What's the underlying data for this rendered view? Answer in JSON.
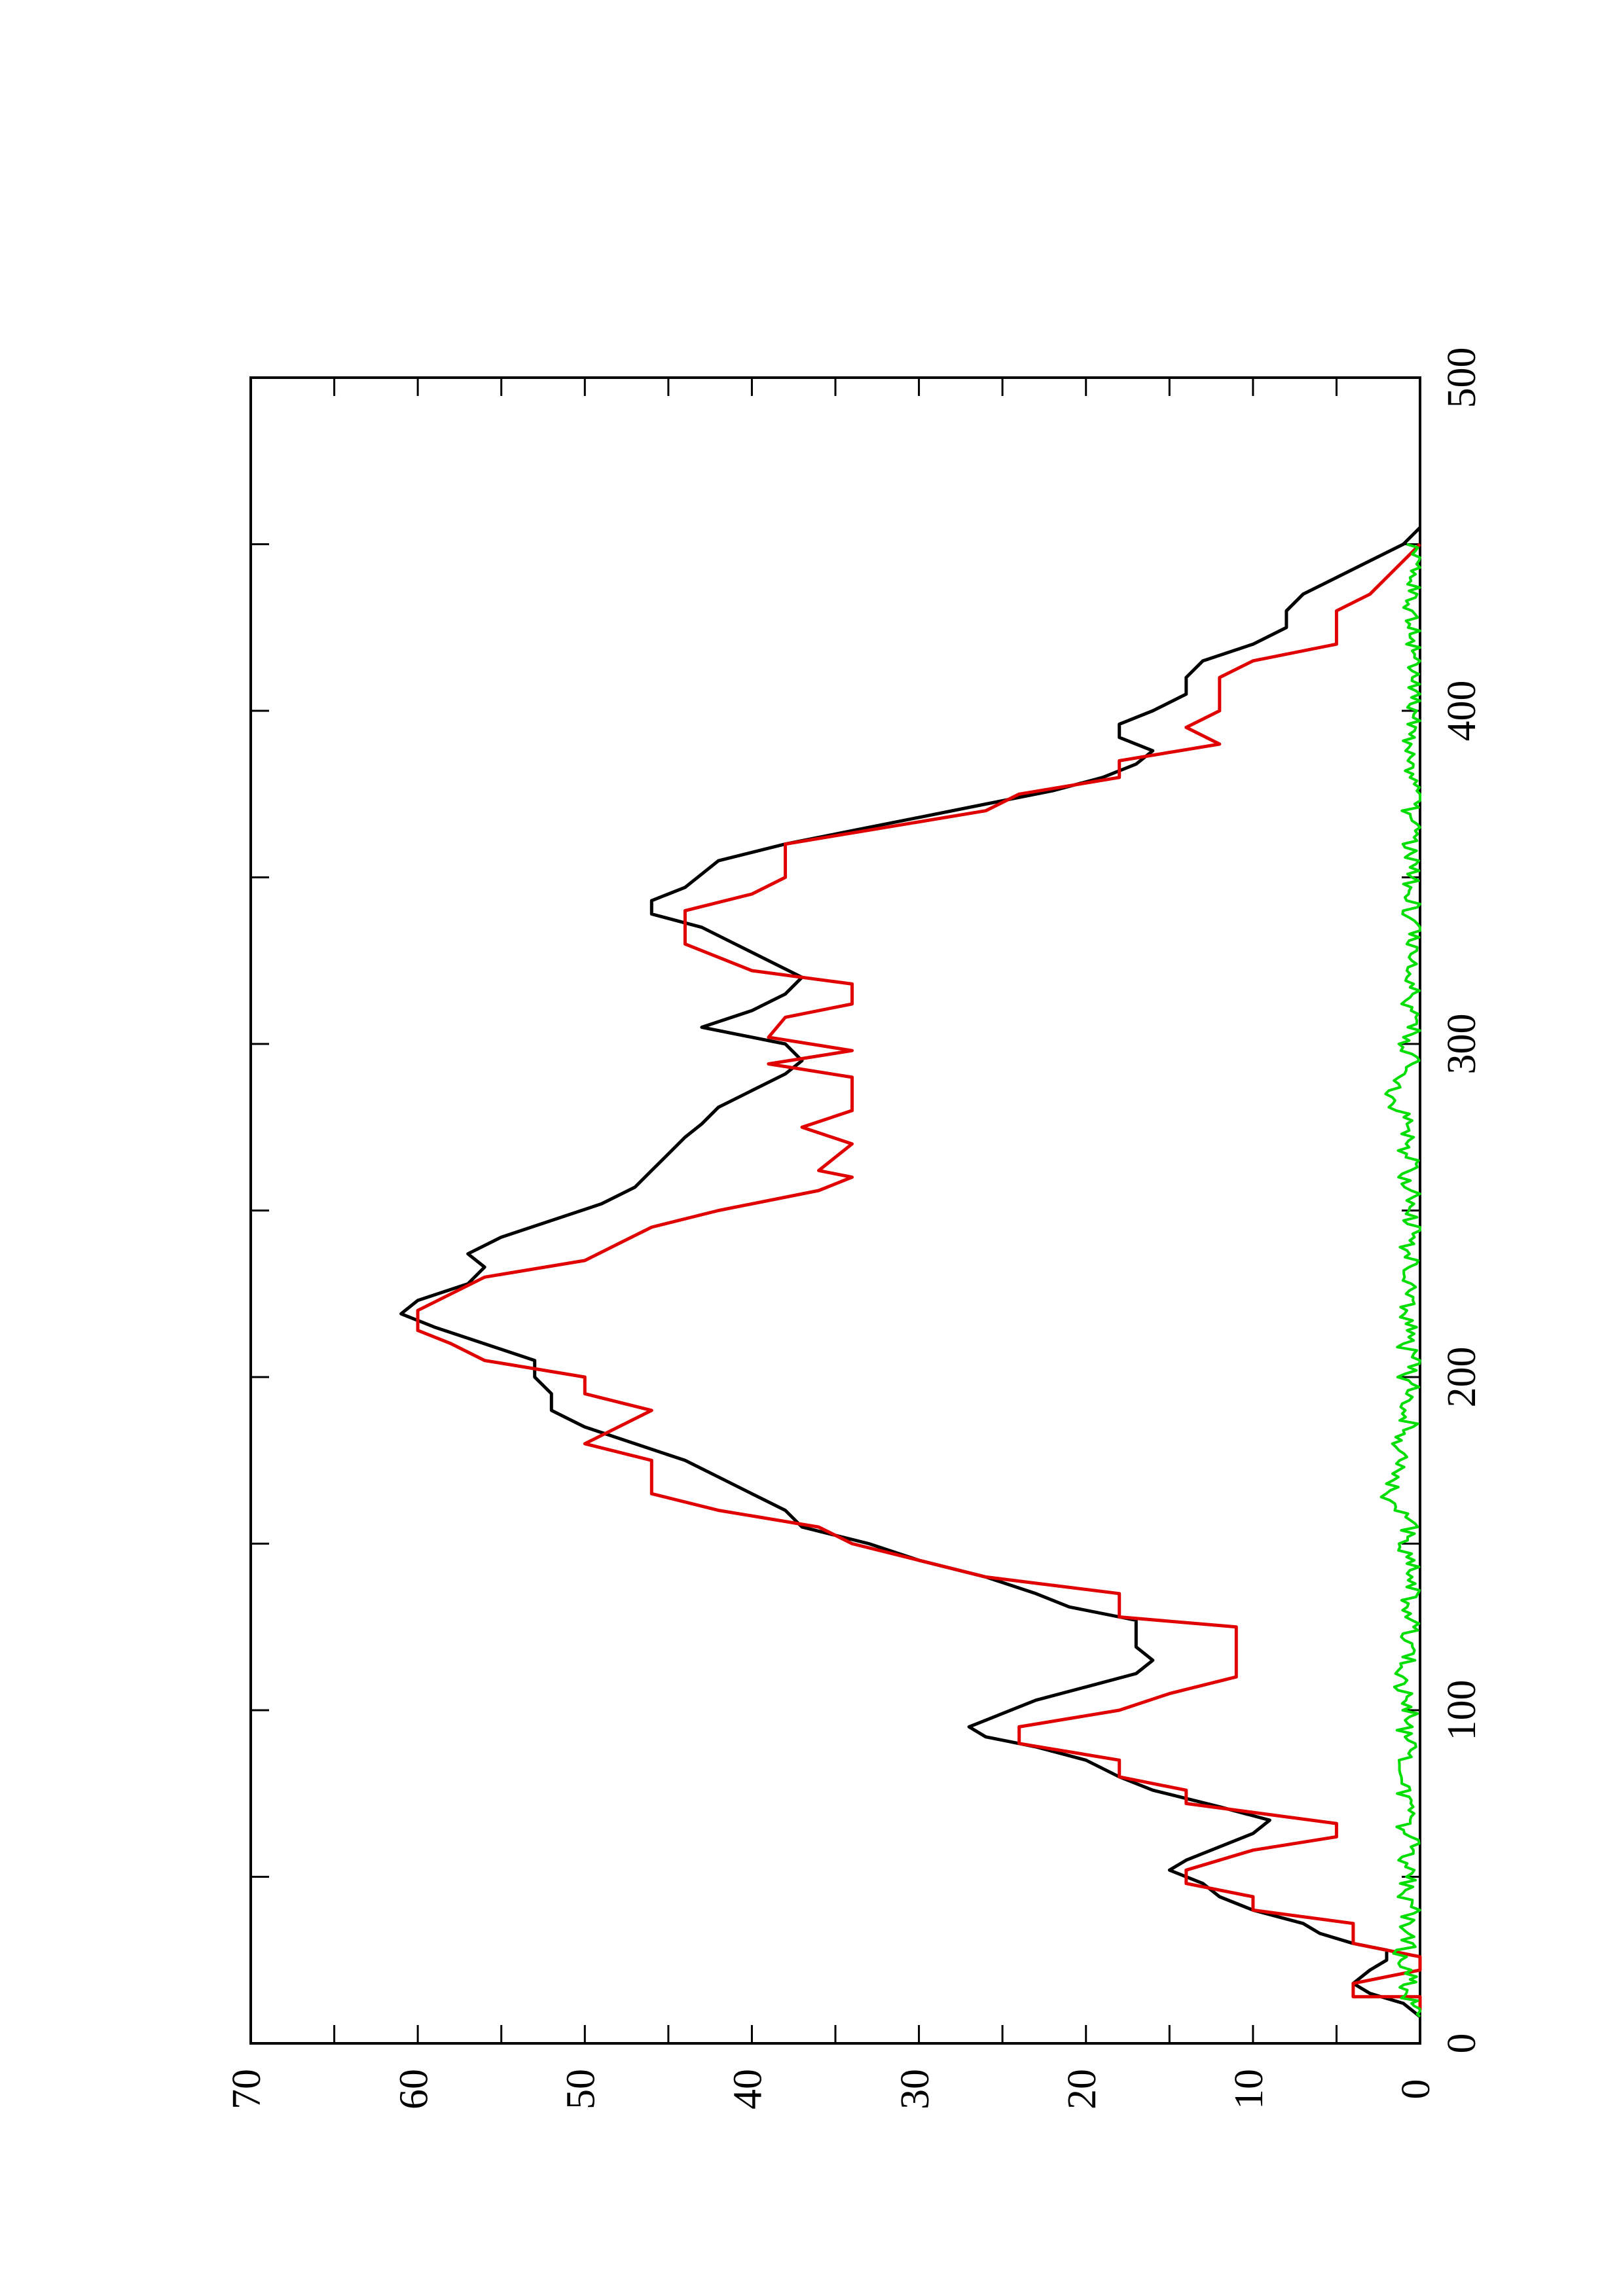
{
  "chart_data": {
    "type": "line",
    "orientation": "rotated-90-ccw",
    "title": "",
    "xlabel": "",
    "ylabel": "",
    "xlim": [
      0,
      500
    ],
    "ylim": [
      0,
      70
    ],
    "x_ticks": [
      "0",
      "100",
      "200",
      "300",
      "400",
      "500"
    ],
    "y_ticks": [
      "0",
      "10",
      "20",
      "30",
      "40",
      "50",
      "60",
      "70"
    ],
    "grid": false,
    "legend": "none",
    "series": [
      {
        "color": "#000000",
        "style": "line",
        "points": [
          [
            8,
            0
          ],
          [
            12,
            1
          ],
          [
            15,
            3
          ],
          [
            18,
            4
          ],
          [
            22,
            3
          ],
          [
            25,
            2
          ],
          [
            28,
            2
          ],
          [
            30,
            4
          ],
          [
            33,
            6
          ],
          [
            36,
            7
          ],
          [
            40,
            10
          ],
          [
            44,
            12
          ],
          [
            48,
            13
          ],
          [
            52,
            15
          ],
          [
            55,
            14
          ],
          [
            59,
            12
          ],
          [
            63,
            10
          ],
          [
            67,
            9
          ],
          [
            71,
            12
          ],
          [
            76,
            16
          ],
          [
            80,
            18
          ],
          [
            85,
            20
          ],
          [
            89,
            23
          ],
          [
            92,
            26
          ],
          [
            95,
            27
          ],
          [
            99,
            25
          ],
          [
            103,
            23
          ],
          [
            107,
            20
          ],
          [
            111,
            17
          ],
          [
            115,
            16
          ],
          [
            119,
            17
          ],
          [
            123,
            17
          ],
          [
            127,
            17
          ],
          [
            131,
            21
          ],
          [
            135,
            23
          ],
          [
            140,
            26
          ],
          [
            145,
            30
          ],
          [
            150,
            33
          ],
          [
            155,
            37
          ],
          [
            160,
            38
          ],
          [
            165,
            40
          ],
          [
            170,
            42
          ],
          [
            175,
            44
          ],
          [
            180,
            47
          ],
          [
            185,
            50
          ],
          [
            190,
            52
          ],
          [
            195,
            52
          ],
          [
            200,
            53
          ],
          [
            205,
            53
          ],
          [
            210,
            56
          ],
          [
            215,
            59
          ],
          [
            219,
            61
          ],
          [
            223,
            60
          ],
          [
            228,
            57
          ],
          [
            233,
            56
          ],
          [
            237,
            57
          ],
          [
            242,
            55
          ],
          [
            247,
            52
          ],
          [
            252,
            49
          ],
          [
            257,
            47
          ],
          [
            262,
            46
          ],
          [
            267,
            45
          ],
          [
            272,
            44
          ],
          [
            276,
            43
          ],
          [
            281,
            42
          ],
          [
            286,
            40
          ],
          [
            291,
            38
          ],
          [
            295,
            37
          ],
          [
            300,
            38
          ],
          [
            305,
            43
          ],
          [
            310,
            40
          ],
          [
            315,
            38
          ],
          [
            320,
            37
          ],
          [
            325,
            39
          ],
          [
            330,
            41
          ],
          [
            335,
            43
          ],
          [
            339,
            46
          ],
          [
            343,
            46
          ],
          [
            347,
            44
          ],
          [
            351,
            43
          ],
          [
            355,
            42
          ],
          [
            360,
            38
          ],
          [
            364,
            34
          ],
          [
            368,
            30
          ],
          [
            372,
            26
          ],
          [
            376,
            22
          ],
          [
            380,
            19
          ],
          [
            384,
            17
          ],
          [
            388,
            16
          ],
          [
            392,
            18
          ],
          [
            396,
            18
          ],
          [
            400,
            16
          ],
          [
            405,
            14
          ],
          [
            410,
            14
          ],
          [
            415,
            13
          ],
          [
            420,
            10
          ],
          [
            425,
            8
          ],
          [
            430,
            8
          ],
          [
            435,
            7
          ],
          [
            440,
            5
          ],
          [
            445,
            3
          ],
          [
            450,
            1
          ],
          [
            455,
            0
          ]
        ]
      },
      {
        "color": "#e00000",
        "style": "line",
        "points": [
          [
            10,
            0
          ],
          [
            14,
            0
          ],
          [
            14,
            4
          ],
          [
            18,
            4
          ],
          [
            22,
            0
          ],
          [
            26,
            0
          ],
          [
            30,
            4
          ],
          [
            36,
            4
          ],
          [
            40,
            10
          ],
          [
            44,
            10
          ],
          [
            48,
            14
          ],
          [
            52,
            14
          ],
          [
            58,
            10
          ],
          [
            62,
            5
          ],
          [
            66,
            5
          ],
          [
            72,
            14
          ],
          [
            76,
            14
          ],
          [
            80,
            18
          ],
          [
            85,
            18
          ],
          [
            90,
            24
          ],
          [
            95,
            24
          ],
          [
            100,
            18
          ],
          [
            105,
            15
          ],
          [
            110,
            11
          ],
          [
            120,
            11
          ],
          [
            125,
            11
          ],
          [
            128,
            18
          ],
          [
            135,
            18
          ],
          [
            140,
            26
          ],
          [
            145,
            30
          ],
          [
            150,
            34
          ],
          [
            155,
            36
          ],
          [
            160,
            42
          ],
          [
            165,
            46
          ],
          [
            170,
            46
          ],
          [
            175,
            46
          ],
          [
            180,
            50
          ],
          [
            190,
            46
          ],
          [
            195,
            50
          ],
          [
            200,
            50
          ],
          [
            205,
            56
          ],
          [
            210,
            58
          ],
          [
            214,
            60
          ],
          [
            220,
            60
          ],
          [
            230,
            56
          ],
          [
            235,
            50
          ],
          [
            240,
            48
          ],
          [
            245,
            46
          ],
          [
            250,
            42
          ],
          [
            256,
            36
          ],
          [
            260,
            34
          ],
          [
            262,
            36
          ],
          [
            270,
            34
          ],
          [
            275,
            37
          ],
          [
            280,
            34
          ],
          [
            290,
            34
          ],
          [
            294,
            39
          ],
          [
            298,
            34
          ],
          [
            302,
            39
          ],
          [
            308,
            38
          ],
          [
            312,
            34
          ],
          [
            318,
            34
          ],
          [
            322,
            40
          ],
          [
            330,
            44
          ],
          [
            340,
            44
          ],
          [
            345,
            40
          ],
          [
            350,
            38
          ],
          [
            360,
            38
          ],
          [
            365,
            32
          ],
          [
            370,
            26
          ],
          [
            375,
            24
          ],
          [
            380,
            18
          ],
          [
            385,
            18
          ],
          [
            390,
            12
          ],
          [
            395,
            14
          ],
          [
            400,
            12
          ],
          [
            410,
            12
          ],
          [
            415,
            10
          ],
          [
            420,
            5
          ],
          [
            430,
            5
          ],
          [
            435,
            3
          ],
          [
            440,
            2
          ],
          [
            450,
            0
          ]
        ]
      },
      {
        "color": "#00dd00",
        "style": "line",
        "noise": true,
        "points": [
          [
            8,
            0
          ],
          [
            12,
            0.5
          ],
          [
            16,
            1
          ],
          [
            20,
            0.5
          ],
          [
            25,
            1.5
          ],
          [
            30,
            0.5
          ],
          [
            35,
            1
          ],
          [
            40,
            0.3
          ],
          [
            45,
            1.2
          ],
          [
            50,
            0.4
          ],
          [
            55,
            1
          ],
          [
            60,
            0.5
          ],
          [
            65,
            0.9
          ],
          [
            70,
            0.3
          ],
          [
            75,
            1.1
          ],
          [
            80,
            0.6
          ],
          [
            85,
            1.2
          ],
          [
            90,
            0.4
          ],
          [
            95,
            1
          ],
          [
            100,
            0.5
          ],
          [
            105,
            0.9
          ],
          [
            110,
            1.4
          ],
          [
            115,
            0.6
          ],
          [
            120,
            1
          ],
          [
            125,
            0.4
          ],
          [
            130,
            1.2
          ],
          [
            135,
            0.5
          ],
          [
            140,
            0.9
          ],
          [
            145,
            0.4
          ],
          [
            150,
            1.1
          ],
          [
            155,
            0.6
          ],
          [
            160,
            1.4
          ],
          [
            165,
            2
          ],
          [
            170,
            1.3
          ],
          [
            175,
            0.8
          ],
          [
            180,
            1.2
          ],
          [
            185,
            0.5
          ],
          [
            190,
            1
          ],
          [
            195,
            0.4
          ],
          [
            200,
            0.8
          ],
          [
            205,
            0.3
          ],
          [
            210,
            1
          ],
          [
            215,
            0.5
          ],
          [
            220,
            0.9
          ],
          [
            225,
            0.4
          ],
          [
            230,
            1.2
          ],
          [
            235,
            0.6
          ],
          [
            240,
            0.8
          ],
          [
            245,
            0.4
          ],
          [
            250,
            0.9
          ],
          [
            255,
            0.3
          ],
          [
            260,
            0.8
          ],
          [
            265,
            0.5
          ],
          [
            270,
            1
          ],
          [
            275,
            0.4
          ],
          [
            280,
            1.2
          ],
          [
            285,
            2
          ],
          [
            290,
            1
          ],
          [
            295,
            0.5
          ],
          [
            300,
            0.8
          ],
          [
            305,
            0.3
          ],
          [
            310,
            0.7
          ],
          [
            315,
            0.4
          ],
          [
            320,
            1
          ],
          [
            325,
            0.4
          ],
          [
            330,
            0.8
          ],
          [
            335,
            0.3
          ],
          [
            340,
            0.6
          ],
          [
            345,
            0.3
          ],
          [
            350,
            0.7
          ],
          [
            355,
            0.3
          ],
          [
            360,
            0.8
          ],
          [
            365,
            0.4
          ],
          [
            370,
            0.6
          ],
          [
            375,
            0.3
          ],
          [
            380,
            0.7
          ],
          [
            385,
            0.3
          ],
          [
            390,
            0.8
          ],
          [
            395,
            0.3
          ],
          [
            400,
            0.5
          ],
          [
            405,
            0.2
          ],
          [
            410,
            0.7
          ],
          [
            415,
            0.3
          ],
          [
            420,
            0.5
          ],
          [
            425,
            0.2
          ],
          [
            430,
            0.6
          ],
          [
            435,
            0.3
          ],
          [
            440,
            0.5
          ],
          [
            445,
            0.2
          ],
          [
            450,
            0.8
          ]
        ]
      }
    ]
  }
}
